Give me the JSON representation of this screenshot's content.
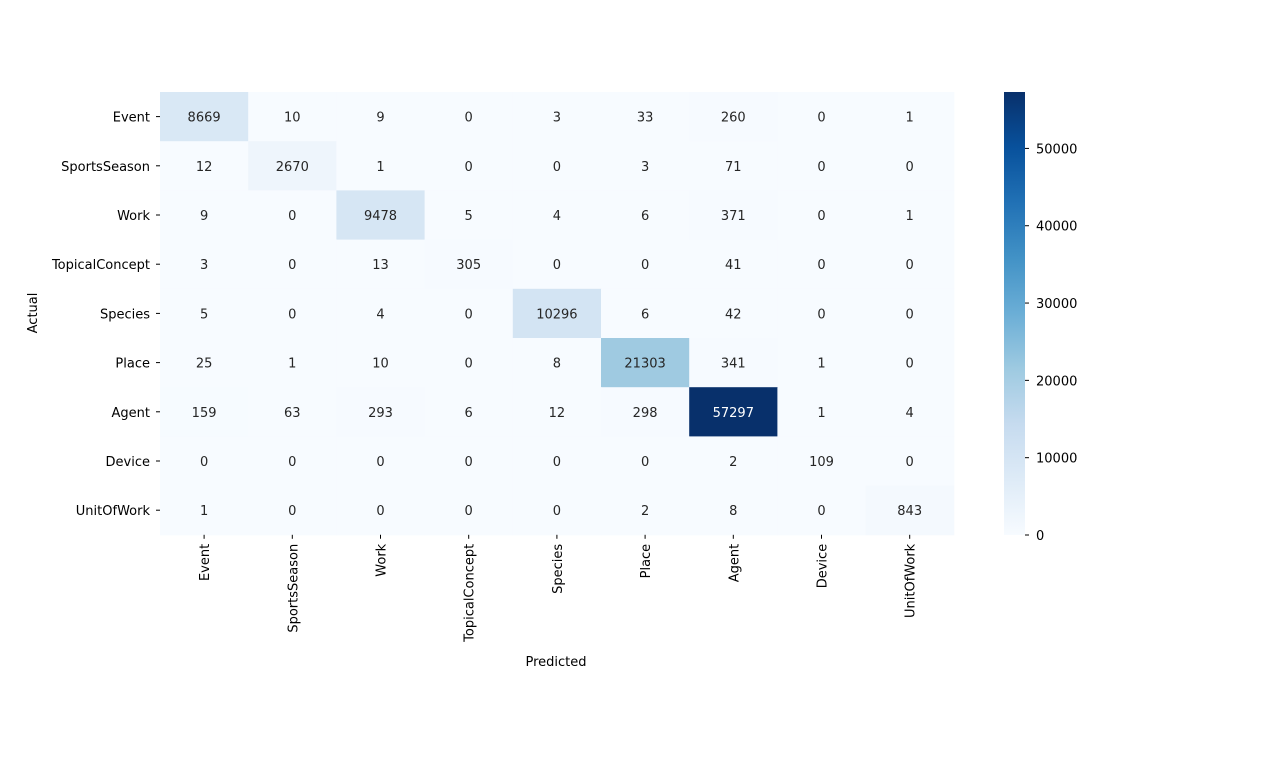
{
  "chart_data": {
    "type": "heatmap",
    "title": "",
    "xlabel": "Predicted",
    "ylabel": "Actual",
    "x_categories": [
      "Event",
      "SportsSeason",
      "Work",
      "TopicalConcept",
      "Species",
      "Place",
      "Agent",
      "Device",
      "UnitOfWork"
    ],
    "y_categories": [
      "Event",
      "SportsSeason",
      "Work",
      "TopicalConcept",
      "Species",
      "Place",
      "Agent",
      "Device",
      "UnitOfWork"
    ],
    "values": [
      [
        8669,
        10,
        9,
        0,
        3,
        33,
        260,
        0,
        1
      ],
      [
        12,
        2670,
        1,
        0,
        0,
        3,
        71,
        0,
        0
      ],
      [
        9,
        0,
        9478,
        5,
        4,
        6,
        371,
        0,
        1
      ],
      [
        3,
        0,
        13,
        305,
        0,
        0,
        41,
        0,
        0
      ],
      [
        5,
        0,
        4,
        0,
        10296,
        6,
        42,
        0,
        0
      ],
      [
        25,
        1,
        10,
        0,
        8,
        21303,
        341,
        1,
        0
      ],
      [
        159,
        63,
        293,
        6,
        12,
        298,
        57297,
        1,
        4
      ],
      [
        0,
        0,
        0,
        0,
        0,
        0,
        2,
        109,
        0
      ],
      [
        1,
        0,
        0,
        0,
        0,
        2,
        8,
        0,
        843
      ]
    ],
    "colormap": "Blues",
    "colorbar": {
      "range": [
        0,
        57297
      ],
      "ticks": [
        0,
        10000,
        20000,
        30000,
        40000,
        50000
      ],
      "tick_labels": [
        "0",
        "10000",
        "20000",
        "30000",
        "40000",
        "50000"
      ]
    },
    "annotations": true,
    "grid": false
  }
}
